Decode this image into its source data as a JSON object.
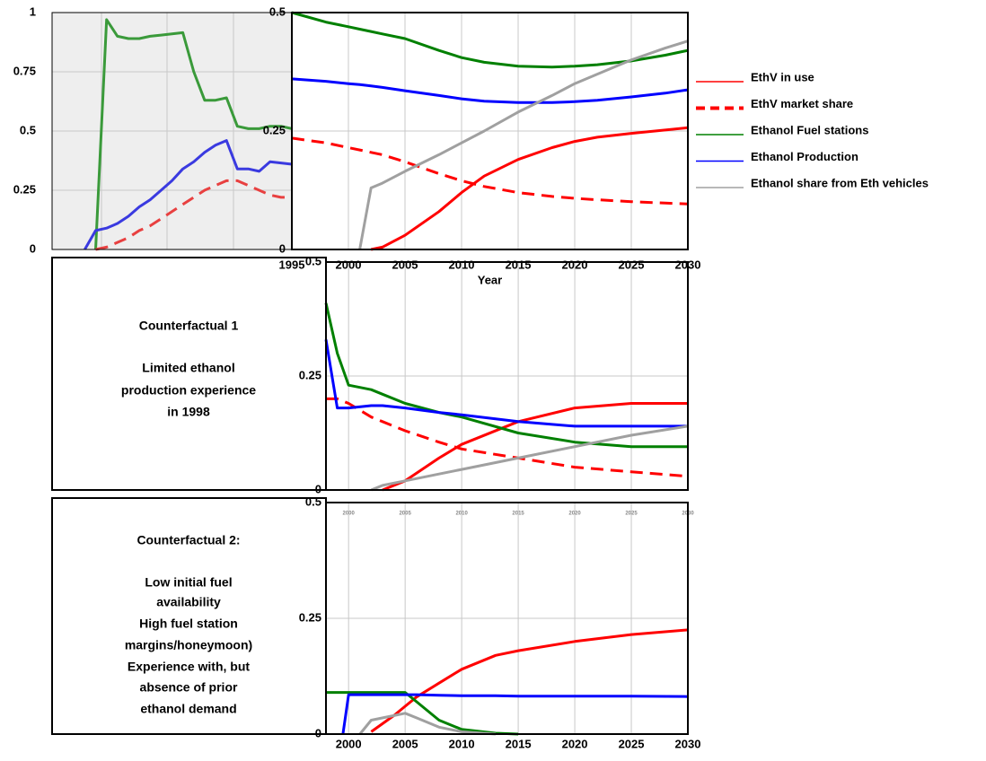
{
  "chart_data": [
    {
      "type": "line",
      "ylim": [
        0,
        1
      ],
      "yticks": [
        0,
        0.25,
        0.5,
        0.75,
        1
      ],
      "grid": true,
      "series": [
        {
          "color": "#3a9a3a",
          "values": [
            null,
            null,
            null,
            null,
            0,
            0.97,
            0.9,
            0.89,
            0.89,
            0.9,
            0.905,
            0.91,
            0.915,
            0.75,
            0.63,
            0.63,
            0.64,
            0.52,
            0.51,
            0.51,
            0.52,
            0.52,
            0.51
          ]
        },
        {
          "color": "#3a3ae0",
          "values": [
            null,
            null,
            null,
            0,
            0.08,
            0.09,
            0.11,
            0.14,
            0.18,
            0.21,
            0.25,
            0.29,
            0.34,
            0.37,
            0.41,
            0.44,
            0.46,
            0.34,
            0.34,
            0.33,
            0.37,
            0.365,
            0.36
          ]
        },
        {
          "color": "#e84040",
          "dashed": true,
          "values": [
            null,
            null,
            null,
            null,
            0,
            0.01,
            0.03,
            0.05,
            0.08,
            0.1,
            0.13,
            0.16,
            0.19,
            0.22,
            0.25,
            0.27,
            0.29,
            0.29,
            0.27,
            0.25,
            0.23,
            0.22,
            0.22
          ]
        }
      ]
    },
    {
      "type": "line",
      "xlabel": "Year",
      "xlim": [
        1995,
        2030
      ],
      "xticks": [
        1995,
        2000,
        2005,
        2010,
        2015,
        2020,
        2025,
        2030
      ],
      "ylim": [
        0,
        0.5
      ],
      "yticks": [
        0,
        0.25,
        0.5
      ],
      "grid": true,
      "x": [
        1995,
        1998,
        2000,
        2001,
        2002,
        2003,
        2005,
        2008,
        2010,
        2012,
        2015,
        2018,
        2020,
        2022,
        2025,
        2028,
        2030
      ],
      "series": [
        {
          "name": "EthV in use",
          "color": "#ff0000",
          "values": [
            null,
            null,
            null,
            null,
            0,
            0.005,
            0.03,
            0.08,
            0.12,
            0.155,
            0.19,
            0.215,
            0.228,
            0.237,
            0.245,
            0.252,
            0.257
          ]
        },
        {
          "name": "EthV market share",
          "color": "#ff0000",
          "dashed": true,
          "values": [
            0.235,
            0.225,
            0.215,
            0.21,
            0.205,
            0.2,
            0.185,
            0.16,
            0.145,
            0.133,
            0.12,
            0.112,
            0.108,
            0.105,
            0.101,
            0.098,
            0.096
          ]
        },
        {
          "name": "Ethanol Fuel stations",
          "color": "#008000",
          "values": [
            0.5,
            0.48,
            0.47,
            0.465,
            0.46,
            0.455,
            0.445,
            0.42,
            0.405,
            0.395,
            0.387,
            0.385,
            0.387,
            0.39,
            0.398,
            0.41,
            0.42
          ]
        },
        {
          "name": "Ethanol Production",
          "color": "#0000ff",
          "values": [
            0.36,
            0.355,
            0.35,
            0.348,
            0.345,
            0.342,
            0.335,
            0.325,
            0.318,
            0.313,
            0.31,
            0.31,
            0.312,
            0.315,
            0.322,
            0.33,
            0.337
          ]
        },
        {
          "name": "Ethanol share from Eth vehicles",
          "color": "#a0a0a0",
          "values": [
            null,
            null,
            null,
            0,
            0.13,
            0.14,
            0.165,
            0.2,
            0.225,
            0.25,
            0.29,
            0.325,
            0.35,
            0.37,
            0.4,
            0.425,
            0.44
          ]
        }
      ]
    },
    {
      "type": "line",
      "xlim": [
        1998,
        2030
      ],
      "xticks": [
        2000,
        2005,
        2010,
        2015,
        2020,
        2025,
        2030
      ],
      "ylim": [
        0,
        0.5
      ],
      "yticks": [
        0,
        0.25,
        0.5
      ],
      "grid": true,
      "x": [
        1998,
        1999,
        2000,
        2002,
        2003,
        2005,
        2008,
        2010,
        2015,
        2020,
        2025,
        2030
      ],
      "series": [
        {
          "color": "#ff0000",
          "values": [
            null,
            null,
            null,
            null,
            0,
            0.02,
            0.07,
            0.1,
            0.15,
            0.18,
            0.19,
            0.19
          ]
        },
        {
          "color": "#ff0000",
          "dashed": true,
          "values": [
            0.2,
            0.2,
            0.19,
            0.16,
            0.15,
            0.13,
            0.105,
            0.09,
            0.07,
            0.05,
            0.04,
            0.03
          ]
        },
        {
          "color": "#008000",
          "values": [
            0.41,
            0.3,
            0.23,
            0.22,
            0.21,
            0.19,
            0.17,
            0.16,
            0.125,
            0.105,
            0.095,
            0.095
          ]
        },
        {
          "color": "#0000ff",
          "values": [
            0.33,
            0.18,
            0.18,
            0.185,
            0.185,
            0.18,
            0.17,
            0.165,
            0.15,
            0.14,
            0.14,
            0.14
          ]
        },
        {
          "color": "#a0a0a0",
          "values": [
            null,
            null,
            null,
            0,
            0.01,
            0.02,
            0.035,
            0.045,
            0.07,
            0.095,
            0.12,
            0.14
          ]
        }
      ]
    },
    {
      "type": "line",
      "xlim": [
        1998,
        2030
      ],
      "xticks": [
        2000,
        2005,
        2010,
        2015,
        2020,
        2025,
        2030
      ],
      "ylim": [
        0,
        0.5
      ],
      "yticks": [
        0,
        0.25,
        0.5
      ],
      "grid": true,
      "x": [
        1998,
        1999.5,
        2000,
        2001,
        2002,
        2004,
        2005,
        2006,
        2008,
        2010,
        2013,
        2015,
        2020,
        2025,
        2030
      ],
      "series": [
        {
          "color": "#ff0000",
          "values": [
            null,
            null,
            null,
            null,
            0.005,
            0.04,
            0.06,
            0.08,
            0.11,
            0.14,
            0.17,
            0.18,
            0.2,
            0.215,
            0.225
          ]
        },
        {
          "color": "#008000",
          "values": [
            0.09,
            0.09,
            0.09,
            0.09,
            0.09,
            0.09,
            0.09,
            0.07,
            0.03,
            0.01,
            0.002,
            0,
            null,
            null,
            null
          ]
        },
        {
          "color": "#0000ff",
          "values": [
            null,
            0,
            0.085,
            0.085,
            0.085,
            0.085,
            0.085,
            0.085,
            0.084,
            0.083,
            0.083,
            0.082,
            0.082,
            0.082,
            0.081
          ]
        },
        {
          "color": "#a0a0a0",
          "values": [
            null,
            null,
            null,
            0,
            0.03,
            0.04,
            0.045,
            0.035,
            0.015,
            0.005,
            0,
            null,
            null,
            null,
            null
          ]
        }
      ]
    }
  ],
  "panels": [
    {
      "lines": [
        "Counterfactual 1",
        "Limited ethanol",
        "production experience",
        "in 1998"
      ]
    },
    {
      "lines": [
        "Counterfactual 2:",
        "Low initial fuel",
        "availability",
        "High fuel station",
        "margins/honeymoon)",
        "Experience with, but",
        "absence of prior",
        "ethanol demand"
      ]
    }
  ]
}
